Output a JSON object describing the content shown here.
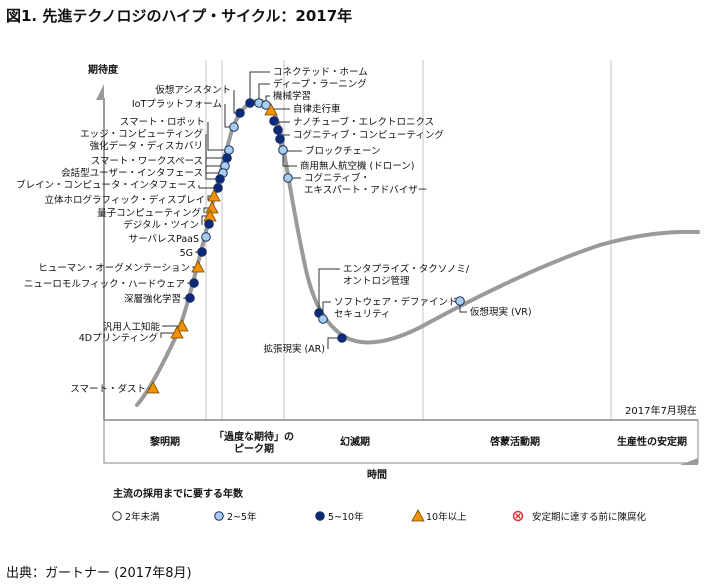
{
  "title": "図1. 先進テクノロジのハイプ・サイクル：2017年",
  "y_axis_label": "期待度",
  "x_axis_label": "時間",
  "as_of": "2017年7月現在",
  "phases": [
    "黎明期",
    "「過度な期待」の",
    "ピーク期",
    "幻滅期",
    "啓蒙活動期",
    "生産性の安定期"
  ],
  "legend": {
    "title": "主流の採用までに要する年数",
    "items": [
      {
        "label": "2年未満",
        "kind": "white"
      },
      {
        "label": "2~5年",
        "kind": "light"
      },
      {
        "label": "5~10年",
        "kind": "dark"
      },
      {
        "label": "10年以上",
        "kind": "triangle"
      },
      {
        "label": "安定期に達する前に陳腐化",
        "kind": "obsolete"
      }
    ]
  },
  "colors": {
    "light": "#a9cdf0",
    "dark": "#0b2a7a",
    "triangle": "#f39200",
    "curve": "#9a9a9a",
    "obsolete": "#e0303a"
  },
  "technologies": [
    {
      "label": "コネクテッド・ホーム",
      "kind": "dark"
    },
    {
      "label": "ディープ・ラーニング",
      "kind": "light"
    },
    {
      "label": "機械学習",
      "kind": "light"
    },
    {
      "label": "自律走行車",
      "kind": "triangle"
    },
    {
      "label": "ナノチューブ・エレクトロニクス",
      "kind": "dark"
    },
    {
      "label": "コグニティブ・コンピューティング",
      "kind": "dark"
    },
    {
      "label": "ブロックチェーン",
      "kind": "dark"
    },
    {
      "label": "商用無人航空機 (ドローン)",
      "kind": "light"
    },
    {
      "label": "コグニティブ・",
      "label2": "エキスパート・アドバイザー",
      "kind": "light"
    },
    {
      "label": "仮想アシスタント",
      "kind": "dark"
    },
    {
      "label": "IoTプラットフォーム",
      "kind": "light"
    },
    {
      "label": "スマート・ロボット",
      "kind": "light"
    },
    {
      "label": "エッジ・コンピューティング",
      "kind": "dark"
    },
    {
      "label": "強化データ・ディスカバリ",
      "kind": "light"
    },
    {
      "label": "スマート・ワークスペース",
      "kind": "light"
    },
    {
      "label": "会話型ユーザー・インタフェース",
      "kind": "dark"
    },
    {
      "label": "ブレイン・コンピュータ・インタフェース",
      "kind": "dark"
    },
    {
      "label": "立体ホログラフィック・ディスプレイ",
      "kind": "triangle"
    },
    {
      "label": "量子コンピューティング",
      "kind": "triangle"
    },
    {
      "label": "デジタル・ツイン",
      "kind": "triangle"
    },
    {
      "label": "",
      "kind": "dark"
    },
    {
      "label": "サーバレスPaaS",
      "kind": "light"
    },
    {
      "label": "5G",
      "kind": "dark"
    },
    {
      "label": "ヒューマン・オーグメンテーション",
      "kind": "triangle"
    },
    {
      "label": "ニューロモルフィック・ハードウェア",
      "kind": "dark"
    },
    {
      "label": "深層強化学習",
      "kind": "dark"
    },
    {
      "label": "汎用人工知能",
      "kind": "triangle"
    },
    {
      "label": "4Dプリンティング",
      "kind": "triangle"
    },
    {
      "label": "スマート・ダスト",
      "kind": "triangle"
    },
    {
      "label": "エンタプライズ・タクソノミ/",
      "label2": "オントロジ管理",
      "kind": "dark"
    },
    {
      "label": "ソフトウェア・デファインド・",
      "label2": "セキュリティ",
      "kind": "light"
    },
    {
      "label": "拡張現実 (AR)",
      "kind": "dark"
    },
    {
      "label": "仮想現実 (VR)",
      "kind": "light"
    }
  ],
  "source": "出典：ガートナー (2017年8月)"
}
